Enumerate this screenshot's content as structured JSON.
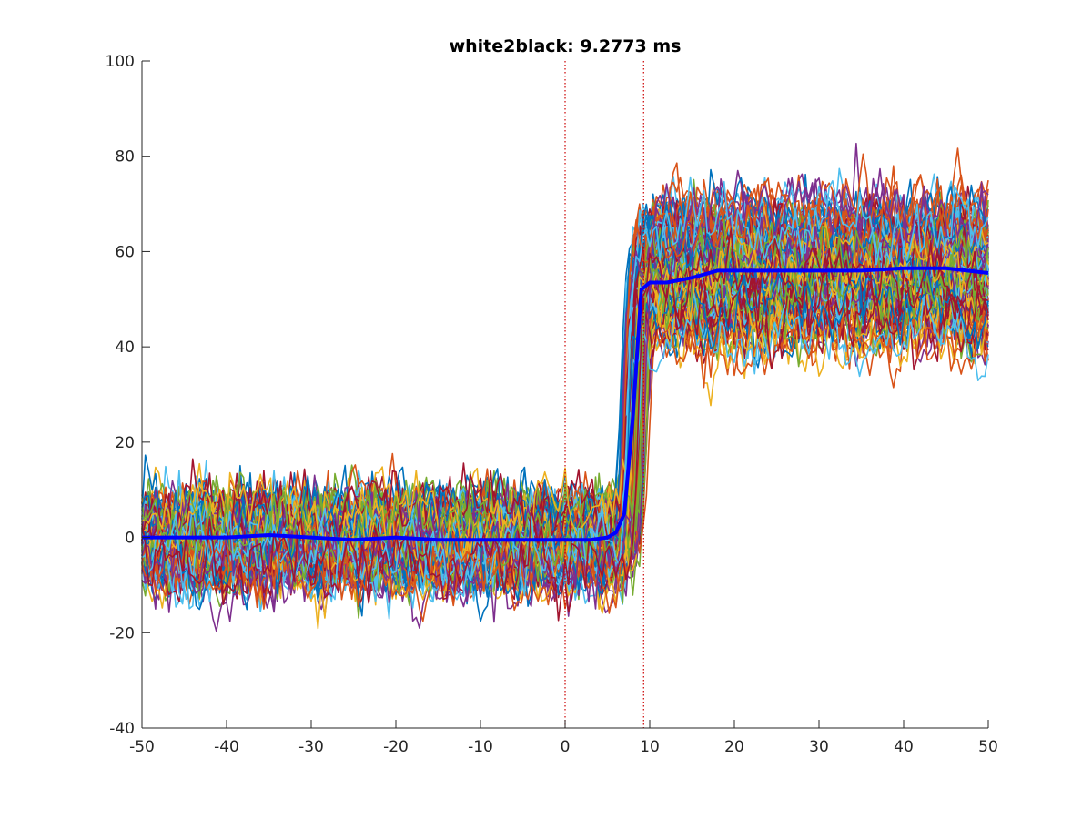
{
  "chart_data": {
    "type": "line",
    "title": "white2black: 9.2773 ms",
    "xlabel": "",
    "ylabel": "",
    "xlim": [
      -50,
      50
    ],
    "ylim": [
      -40,
      100
    ],
    "xticks": [
      -50,
      -40,
      -30,
      -20,
      -10,
      0,
      10,
      20,
      30,
      40,
      50
    ],
    "yticks": [
      -40,
      -20,
      0,
      20,
      40,
      60,
      80,
      100
    ],
    "vlines": [
      0,
      9.2773
    ],
    "vline_color": "#cc0000",
    "grid": false,
    "legend": "none",
    "trace_palette": [
      "#0072bd",
      "#d95319",
      "#edb120",
      "#7e2f8e",
      "#77ac30",
      "#4dbeee",
      "#a2142f"
    ],
    "individual_traces": {
      "count_approx": 250,
      "pre_transition_range": [
        -20,
        20
      ],
      "pre_transition_level": 0,
      "post_transition_range": [
        25,
        85
      ],
      "post_transition_level": 56,
      "transition_x_range": [
        5,
        10
      ]
    },
    "mean_series": {
      "name": "",
      "color": "#0000ff",
      "x": [
        -50,
        -45,
        -40,
        -35,
        -30,
        -25,
        -20,
        -15,
        -10,
        -5,
        0,
        3,
        5,
        6,
        7,
        8,
        9,
        10,
        12,
        15,
        18,
        20,
        25,
        30,
        35,
        40,
        45,
        50
      ],
      "y": [
        0,
        0,
        0,
        0.5,
        0,
        -0.5,
        0,
        -0.5,
        -0.5,
        -0.5,
        -0.5,
        -0.5,
        0,
        1,
        5,
        25,
        52,
        53.5,
        53.5,
        54.5,
        56,
        56,
        56,
        56,
        56,
        56.5,
        56.5,
        55.5
      ]
    }
  }
}
